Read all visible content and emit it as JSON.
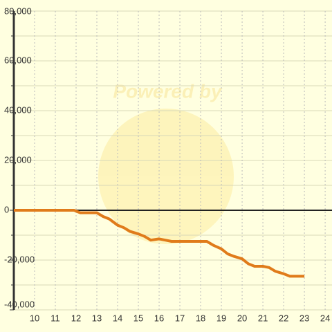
{
  "chart_data": {
    "type": "line",
    "watermark": "Powered by",
    "x": [
      9,
      11.9,
      12.2,
      13,
      13.3,
      13.6,
      14,
      14.3,
      14.6,
      15,
      15.3,
      15.6,
      16,
      16.3,
      16.6,
      17,
      18,
      18.3,
      18.6,
      19,
      19.3,
      19.6,
      20,
      20.3,
      20.6,
      21,
      21.3,
      21.6,
      22,
      22.3,
      22.6,
      23
    ],
    "series": [
      {
        "color": "#e07b1a",
        "values": [
          0,
          0,
          -1000,
          -1000,
          -2500,
          -3500,
          -6000,
          -7000,
          -8500,
          -9500,
          -10500,
          -12000,
          -11500,
          -12000,
          -12500,
          -12500,
          -12500,
          -12500,
          -14000,
          -15500,
          -17500,
          -18500,
          -19500,
          -21500,
          -22500,
          -22500,
          -23000,
          -24500,
          -25500,
          -26500,
          -26500,
          -26500
        ]
      }
    ],
    "xlim": [
      9,
      24.33
    ],
    "xticks": [
      10,
      11,
      12,
      13,
      14,
      15,
      16,
      17,
      18,
      19,
      20,
      21,
      22,
      23,
      24
    ],
    "ylim": [
      -40000,
      80000
    ],
    "yticks": [
      {
        "value": 80000,
        "label": "80,000"
      },
      {
        "value": 60000,
        "label": "60,000"
      },
      {
        "value": 40000,
        "label": "40,000"
      },
      {
        "value": 20000,
        "label": "20,000"
      },
      0,
      {
        "value": -20000,
        "label": "-20,000"
      },
      {
        "value": -40000,
        "label": "-40,000"
      }
    ],
    "y_minor_ticks": [
      70000,
      50000,
      30000,
      10000,
      -10000,
      -30000
    ],
    "grid": true
  }
}
